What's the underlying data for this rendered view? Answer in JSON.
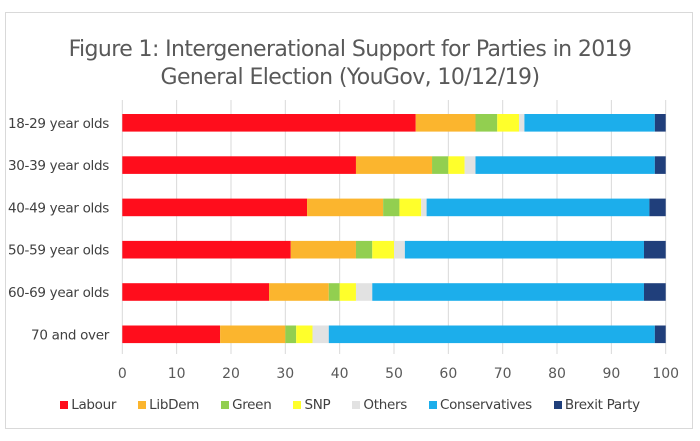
{
  "chart_data": {
    "type": "bar",
    "orientation": "horizontal",
    "stacked": true,
    "title_lines": [
      "Figure 1: Intergenerational Support for Parties in 2019",
      "General Election (YouGov, 10/12/19)"
    ],
    "xlabel": "",
    "ylabel": "",
    "xlim": [
      0,
      100
    ],
    "xticks": [
      0,
      10,
      20,
      30,
      40,
      50,
      60,
      70,
      80,
      90,
      100
    ],
    "grid": true,
    "legend_position": "bottom",
    "categories": [
      "18-29 year olds",
      "30-39 year olds",
      "40-49 year olds",
      "50-59 year olds",
      "60-69 year olds",
      "70 and over"
    ],
    "series": [
      {
        "name": "Labour",
        "color": "#ff0d1c",
        "values": [
          54,
          43,
          34,
          31,
          27,
          18
        ]
      },
      {
        "name": "LibDem",
        "color": "#fbb52e",
        "values": [
          11,
          14,
          14,
          12,
          11,
          12
        ]
      },
      {
        "name": "Green",
        "color": "#92cf50",
        "values": [
          4,
          3,
          3,
          3,
          2,
          2
        ]
      },
      {
        "name": "SNP",
        "color": "#ffff2b",
        "values": [
          4,
          3,
          4,
          4,
          3,
          3
        ]
      },
      {
        "name": "Others",
        "color": "#e2e2e2",
        "values": [
          1,
          2,
          1,
          2,
          3,
          3
        ]
      },
      {
        "name": "Conservatives",
        "color": "#1caeeb",
        "values": [
          24,
          33,
          41,
          44,
          50,
          60
        ]
      },
      {
        "name": "Brexit Party",
        "color": "#203f7b",
        "values": [
          2,
          2,
          3,
          4,
          4,
          2
        ]
      }
    ]
  }
}
